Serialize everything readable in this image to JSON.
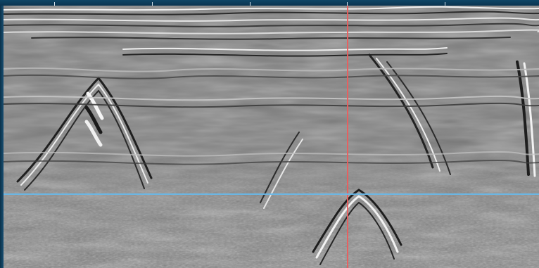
{
  "view": {
    "type": "gpr-radargram",
    "background_color": "#0d3a57",
    "ruler_color": "#d6e4ef"
  },
  "cursors": {
    "vertical_color": "#eb5c5c",
    "horizontal_color": "#67b8ea"
  },
  "icons": {
    "ruler": "ruler-ticks",
    "crosshair": "crosshair"
  }
}
